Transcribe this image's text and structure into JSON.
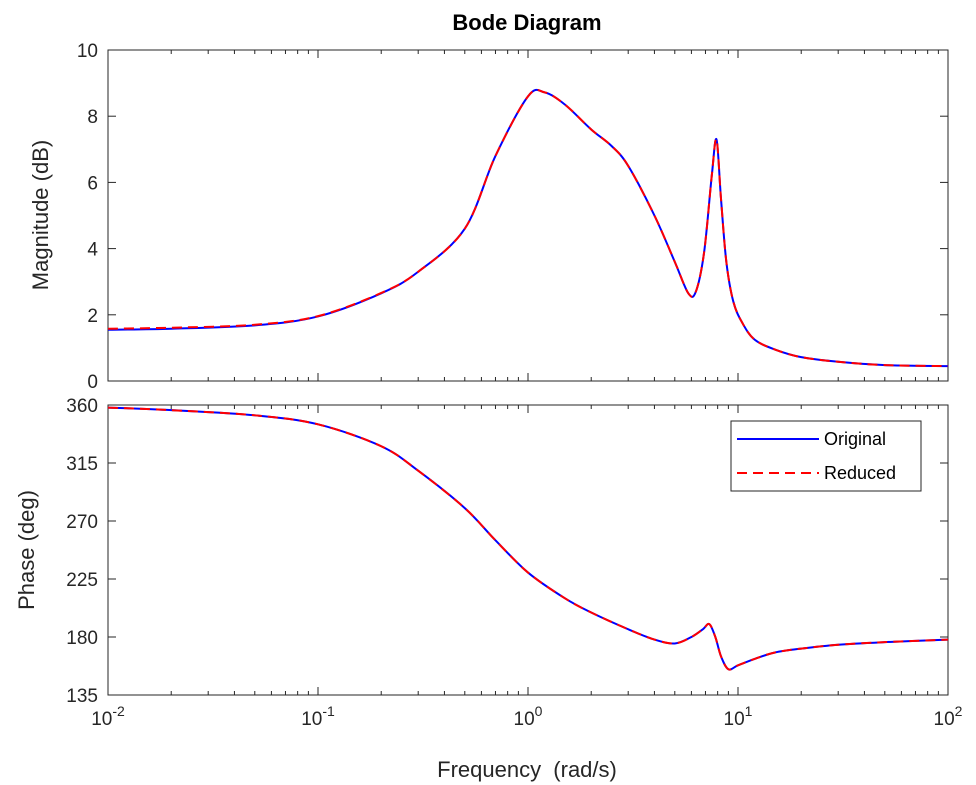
{
  "chart_data": {
    "type": "line",
    "title": "Bode Diagram",
    "xlabel": "Frequency  (rad/s)",
    "x_scale": "log",
    "xlim": [
      0.01,
      100
    ],
    "x_ticks": [
      {
        "value": 0.01,
        "base": "10",
        "exp": "-2"
      },
      {
        "value": 0.1,
        "base": "10",
        "exp": "-1"
      },
      {
        "value": 1,
        "base": "10",
        "exp": "0"
      },
      {
        "value": 10,
        "base": "10",
        "exp": "1"
      },
      {
        "value": 100,
        "base": "10",
        "exp": "2"
      }
    ],
    "legend": {
      "placement": "top-right",
      "panel": "phase"
    },
    "series_styles": [
      {
        "name": "Original",
        "color": "#0000ff",
        "dash": "solid"
      },
      {
        "name": "Reduced",
        "color": "#ff0000",
        "dash": "dashed"
      }
    ],
    "panels": [
      {
        "id": "magnitude",
        "ylabel": "Magnitude (dB)",
        "ylim": [
          0,
          10
        ],
        "y_ticks": [
          "0",
          "2",
          "4",
          "6",
          "8",
          "10"
        ],
        "x": [
          0.01,
          0.02,
          0.05,
          0.1,
          0.2,
          0.3,
          0.5,
          0.7,
          1.0,
          1.2,
          1.5,
          2.0,
          2.5,
          3.0,
          4.0,
          5.0,
          5.8,
          6.3,
          6.9,
          7.5,
          7.9,
          8.3,
          8.8,
          9.5,
          10.5,
          12,
          15,
          20,
          30,
          50,
          100
        ],
        "series": [
          {
            "name": "Original",
            "values": [
              1.55,
              1.58,
              1.68,
              1.95,
              2.65,
              3.3,
              4.6,
              6.8,
              8.6,
              8.72,
              8.35,
              7.6,
              7.1,
              6.5,
              5.0,
              3.6,
              2.65,
              2.7,
              3.9,
              6.2,
              7.3,
              5.5,
              3.6,
              2.4,
              1.75,
              1.25,
              0.95,
              0.72,
              0.58,
              0.48,
              0.45
            ]
          },
          {
            "name": "Reduced",
            "values": [
              1.58,
              1.61,
              1.7,
              1.96,
              2.66,
              3.3,
              4.6,
              6.8,
              8.6,
              8.72,
              8.35,
              7.6,
              7.1,
              6.5,
              5.0,
              3.6,
              2.65,
              2.7,
              3.9,
              6.2,
              7.3,
              5.5,
              3.6,
              2.4,
              1.75,
              1.25,
              0.95,
              0.72,
              0.58,
              0.48,
              0.45
            ]
          }
        ]
      },
      {
        "id": "phase",
        "ylabel": "Phase (deg)",
        "ylim": [
          135,
          360
        ],
        "y_ticks": [
          "135",
          "180",
          "225",
          "270",
          "315",
          "360"
        ],
        "x": [
          0.01,
          0.02,
          0.05,
          0.1,
          0.2,
          0.3,
          0.5,
          0.7,
          1.0,
          1.5,
          2.0,
          3.0,
          4.0,
          5.0,
          6.0,
          6.8,
          7.3,
          7.8,
          8.3,
          9.0,
          10,
          12,
          15,
          20,
          30,
          50,
          100
        ],
        "series": [
          {
            "name": "Original",
            "values": [
              358,
              356,
              352,
              345,
              328,
              309,
              280,
              255,
              230,
              210,
              199,
              186,
              178,
              175,
              180,
              186,
              190,
              180,
              165,
              155,
              158,
              163,
              168,
              171,
              174,
              176,
              178
            ]
          },
          {
            "name": "Reduced",
            "values": [
              358,
              356,
              352,
              345,
              328,
              309,
              280,
              255,
              230,
              210,
              199,
              186,
              178,
              175,
              180,
              186,
              190,
              180,
              165,
              155,
              158,
              163,
              168,
              171,
              174,
              176,
              178
            ]
          }
        ]
      }
    ]
  }
}
